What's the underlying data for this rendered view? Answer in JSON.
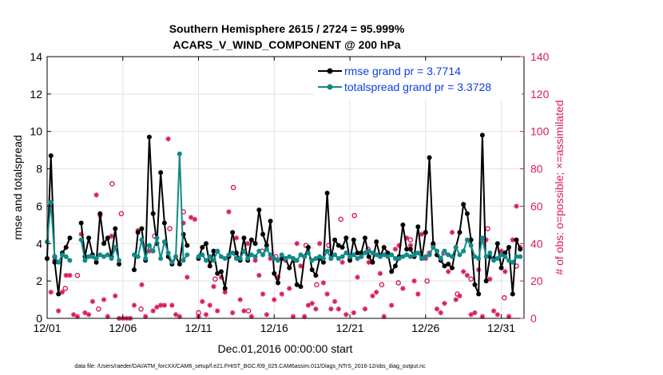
{
  "chart_data": {
    "type": "line",
    "title_line1": "Southern Hemisphere 2615 / 2724 = 95.999%",
    "title_line2": "ACARS_V_WIND_COMPONENT @ 200 hPa",
    "xlabel": "Dec.01,2016 00:00:00 start",
    "ylabel": "rmse and totalspread",
    "y2label": "# of obs: o=possible; ×=assimilated",
    "footnote": "data file: /Users/raeder/DAI/ATM_forcXX/CAM6_setup/f.e21.FHIST_BGC.f09_025.CAM6assim.011/Diags_NTrS_2016-12/obs_diag_output.nc",
    "xlim": [
      0,
      31.5
    ],
    "ylim": [
      0,
      14
    ],
    "y2lim": [
      0,
      140
    ],
    "x_tick_labels": [
      "12/01",
      "12/06",
      "12/11",
      "12/16",
      "12/21",
      "12/26",
      "12/31"
    ],
    "x_tick_values": [
      0,
      5,
      10,
      15,
      20,
      25,
      30
    ],
    "y_ticks": [
      0,
      2,
      4,
      6,
      8,
      10,
      12,
      14
    ],
    "y2_ticks": [
      0,
      20,
      40,
      60,
      80,
      100,
      120,
      140
    ],
    "colors": {
      "rmse": "#000000",
      "spread": "#108a8a",
      "obs": "#d81b60",
      "legend_text": "#0b3ee6"
    },
    "series": [
      {
        "name": "rmse",
        "legend": "rmse grand pr = 3.7714",
        "x": [
          0,
          0.25,
          0.5,
          0.75,
          1,
          1.25,
          1.5,
          1.75,
          2,
          2.25,
          2.5,
          2.75,
          3,
          3.25,
          3.5,
          3.75,
          4,
          4.25,
          4.5,
          4.75,
          5,
          5.25,
          5.5,
          5.75,
          6,
          6.25,
          6.5,
          6.75,
          7,
          7.25,
          7.5,
          7.75,
          8,
          8.25,
          8.5,
          8.75,
          9,
          9.25,
          9.5,
          9.75,
          10,
          10.25,
          10.5,
          10.75,
          11,
          11.25,
          11.5,
          11.75,
          12,
          12.25,
          12.5,
          12.75,
          13,
          13.25,
          13.5,
          13.75,
          14,
          14.25,
          14.5,
          14.75,
          15,
          15.25,
          15.5,
          15.75,
          16,
          16.25,
          16.5,
          16.75,
          17,
          17.25,
          17.5,
          17.75,
          18,
          18.25,
          18.5,
          18.75,
          19,
          19.25,
          19.5,
          19.75,
          20,
          20.25,
          20.5,
          20.75,
          21,
          21.25,
          21.5,
          21.75,
          22,
          22.25,
          22.5,
          22.75,
          23,
          23.25,
          23.5,
          23.75,
          24,
          24.25,
          24.5,
          24.75,
          25,
          25.25,
          25.5,
          25.75,
          26,
          26.25,
          26.5,
          26.75,
          27,
          27.25,
          27.5,
          27.75,
          28,
          28.25,
          28.5,
          28.75,
          29,
          29.25,
          29.5,
          29.75,
          30,
          30.25,
          30.5,
          30.75,
          31,
          31.25
        ],
        "values": [
          3.2,
          8.7,
          3.0,
          1.3,
          3.5,
          3.8,
          4.3,
          null,
          null,
          5.1,
          3.3,
          4.3,
          3.4,
          3.0,
          5.6,
          4.0,
          4.3,
          3.3,
          4.8,
          2.9,
          null,
          null,
          null,
          2.6,
          4.6,
          4.8,
          3.1,
          9.7,
          5.6,
          4.0,
          7.8,
          5.1,
          3.3,
          2.9,
          3.3,
          2.9,
          4.5,
          3.9,
          null,
          null,
          3.2,
          3.8,
          4.0,
          2.8,
          3.6,
          2.4,
          2.5,
          1.6,
          3.3,
          4.6,
          3.5,
          3.1,
          4.3,
          3.1,
          4.2,
          4.0,
          5.8,
          4.5,
          3.9,
          5.2,
          2.4,
          1.9,
          3.2,
          3.2,
          2.7,
          3.2,
          1.8,
          1.7,
          3.3,
          3.8,
          2.6,
          2.3,
          3.2,
          3.0,
          6.7,
          3.2,
          4.2,
          3.9,
          3.8,
          4.3,
          3.1,
          4.2,
          3.5,
          3.5,
          4.3,
          3.3,
          3.0,
          4.1,
          3.3,
          3.8,
          3.5,
          2.5,
          2.8,
          3.3,
          5.0,
          3.7,
          3.7,
          3.3,
          4.9,
          3.2,
          4.6,
          8.6,
          4.0,
          3.4,
          3.1,
          2.8,
          2.9,
          2.7,
          3.8,
          4.6,
          6.1,
          5.6,
          4.2,
          1.8,
          1.3,
          9.8,
          2.0,
          3.3,
          3.2,
          4.0,
          2.7,
          3.5,
          3.8,
          1.3,
          4.2,
          3.7
        ]
      },
      {
        "name": "totalspread",
        "legend": "totalspread grand pr = 3.3728",
        "x": [
          0,
          0.25,
          0.5,
          0.75,
          1,
          1.25,
          1.5,
          1.75,
          2,
          2.25,
          2.5,
          2.75,
          3,
          3.25,
          3.5,
          3.75,
          4,
          4.25,
          4.5,
          4.75,
          5,
          5.25,
          5.5,
          5.75,
          6,
          6.25,
          6.5,
          6.75,
          7,
          7.25,
          7.5,
          7.75,
          8,
          8.25,
          8.5,
          8.75,
          9,
          9.25,
          9.5,
          9.75,
          10,
          10.25,
          10.5,
          10.75,
          11,
          11.25,
          11.5,
          11.75,
          12,
          12.25,
          12.5,
          12.75,
          13,
          13.25,
          13.5,
          13.75,
          14,
          14.25,
          14.5,
          14.75,
          15,
          15.25,
          15.5,
          15.75,
          16,
          16.25,
          16.5,
          16.75,
          17,
          17.25,
          17.5,
          17.75,
          18,
          18.25,
          18.5,
          18.75,
          19,
          19.25,
          19.5,
          19.75,
          20,
          20.25,
          20.5,
          20.75,
          21,
          21.25,
          21.5,
          21.75,
          22,
          22.25,
          22.5,
          22.75,
          23,
          23.25,
          23.5,
          23.75,
          24,
          24.25,
          24.5,
          24.75,
          25,
          25.25,
          25.5,
          25.75,
          26,
          26.25,
          26.5,
          26.75,
          27,
          27.25,
          27.5,
          27.75,
          28,
          28.25,
          28.5,
          28.75,
          29,
          29.25,
          29.5,
          29.75,
          30,
          30.25,
          30.5,
          30.75,
          31,
          31.25
        ],
        "values": [
          4.1,
          6.2,
          3.3,
          3.0,
          3.4,
          3.3,
          3.1,
          null,
          null,
          4.2,
          3.1,
          3.3,
          3.3,
          3.2,
          3.4,
          3.3,
          3.4,
          3.2,
          3.8,
          3.1,
          null,
          null,
          null,
          3.4,
          3.3,
          4.2,
          3.2,
          3.9,
          3.6,
          4.3,
          3.2,
          4.1,
          3.5,
          3.0,
          3.3,
          8.8,
          3.1,
          3.4,
          null,
          null,
          3.3,
          3.4,
          3.1,
          3.3,
          3.1,
          3.6,
          3.3,
          3.2,
          3.4,
          3.5,
          3.2,
          3.2,
          3.6,
          3.2,
          3.4,
          3.3,
          3.6,
          3.4,
          3.7,
          3.4,
          3.2,
          3.1,
          3.4,
          3.2,
          3.3,
          3.2,
          3.1,
          3.4,
          3.3,
          3.5,
          3.1,
          3.2,
          3.3,
          3.2,
          3.6,
          3.2,
          3.4,
          3.2,
          3.3,
          3.5,
          3.3,
          3.4,
          3.2,
          3.3,
          3.5,
          3.6,
          3.5,
          3.4,
          3.3,
          3.4,
          3.3,
          3.4,
          3.2,
          3.2,
          3.3,
          3.4,
          3.3,
          3.4,
          3.5,
          3.2,
          3.3,
          3.4,
          3.8,
          3.6,
          3.2,
          3.6,
          3.4,
          3.3,
          3.8,
          3.4,
          3.6,
          4.2,
          3.9,
          3.3,
          3.2,
          4.3,
          3.3,
          3.5,
          3.1,
          3.2,
          3.4,
          3.3,
          3.1,
          3.0,
          3.3,
          3.3
        ]
      }
    ],
    "obs_possible": {
      "x": [
        0.5,
        1.2,
        2.0,
        3.4,
        4.3,
        4.9,
        6.2,
        7.1,
        8.1,
        9.0,
        10.0,
        11.1,
        12.3,
        13.3,
        14.2,
        15.1,
        16.3,
        17.1,
        17.8,
        18.6,
        19.4,
        20.3,
        21.2,
        22.1,
        23.2,
        24.0,
        25.1,
        26.2,
        27.1,
        28.0,
        29.1,
        30.2,
        31.0
      ],
      "values": [
        33,
        16,
        23,
        5,
        72,
        56,
        5,
        44,
        48,
        57,
        3,
        21,
        70,
        4,
        36,
        33,
        31,
        39,
        18,
        39,
        53,
        55,
        37,
        18,
        19,
        42,
        20,
        35,
        13,
        21,
        48,
        11,
        28
      ]
    },
    "obs_assimilated": {
      "x": [
        0,
        0.25,
        0.5,
        0.75,
        1,
        1.25,
        1.5,
        1.75,
        2,
        2.25,
        2.5,
        2.75,
        3,
        3.25,
        3.5,
        3.75,
        4,
        4.25,
        4.5,
        4.75,
        5,
        5.25,
        5.5,
        5.75,
        6,
        6.25,
        6.5,
        6.75,
        7,
        7.25,
        7.5,
        7.75,
        8,
        8.25,
        8.5,
        8.75,
        9,
        9.25,
        9.5,
        9.75,
        10,
        10.25,
        10.5,
        10.75,
        11,
        11.25,
        11.5,
        11.75,
        12,
        12.25,
        12.5,
        12.75,
        13,
        13.25,
        13.5,
        13.75,
        14,
        14.25,
        14.5,
        14.75,
        15,
        15.25,
        15.5,
        15.75,
        16,
        16.25,
        16.5,
        16.75,
        17,
        17.25,
        17.5,
        17.75,
        18,
        18.25,
        18.5,
        18.75,
        19,
        19.25,
        19.5,
        19.75,
        20,
        20.25,
        20.5,
        20.75,
        21,
        21.25,
        21.5,
        21.75,
        22,
        22.25,
        22.5,
        22.75,
        23,
        23.25,
        23.5,
        23.75,
        24,
        24.25,
        24.5,
        24.75,
        25,
        25.25,
        25.5,
        25.75,
        26,
        26.25,
        26.5,
        26.75,
        27,
        27.25,
        27.5,
        27.75,
        28,
        28.25,
        28.5,
        28.75,
        29,
        29.25,
        29.5,
        29.75,
        30,
        30.25,
        30.5,
        30.75,
        31,
        31.25
      ],
      "values": [
        32,
        14,
        31,
        4,
        14,
        23,
        23,
        2,
        1,
        45,
        3,
        2,
        9,
        66,
        55,
        10,
        1,
        44,
        12,
        0,
        0,
        0,
        0,
        7,
        47,
        18,
        1,
        36,
        4,
        6,
        7,
        7,
        96,
        7,
        2,
        1,
        51,
        22,
        54,
        53,
        1,
        9,
        2,
        7,
        17,
        4,
        22,
        14,
        57,
        3,
        43,
        10,
        4,
        40,
        1,
        31,
        23,
        13,
        2,
        32,
        10,
        22,
        13,
        31,
        16,
        1,
        40,
        28,
        1,
        7,
        8,
        5,
        40,
        19,
        13,
        5,
        9,
        5,
        30,
        2,
        32,
        3,
        22,
        33,
        5,
        30,
        12,
        14,
        24,
        1,
        34,
        7,
        37,
        39,
        16,
        43,
        39,
        20,
        13,
        45,
        32,
        35,
        39,
        5,
        3,
        8,
        25,
        46,
        10,
        12,
        25,
        23,
        2,
        3,
        26,
        1,
        42,
        21,
        4,
        2,
        36,
        25,
        1,
        42,
        60,
        38
      ]
    }
  }
}
